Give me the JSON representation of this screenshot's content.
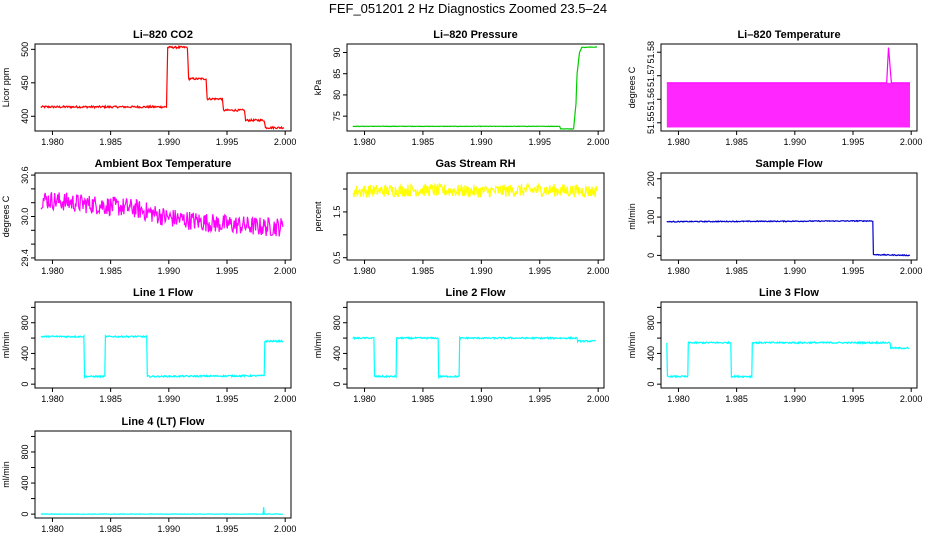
{
  "page": {
    "title": "FEF_051201  2 Hz Diagnostics Zoomed 23.5–24"
  },
  "chart_data": [
    {
      "type": "line",
      "title": "Li–820 CO2",
      "ylabel": "Licor ppm",
      "color": "#ff0000",
      "xlim": [
        1.9785,
        2.0005
      ],
      "ylim": [
        378,
        508
      ],
      "x_ticks": [
        1.98,
        1.985,
        1.99,
        1.995,
        2.0
      ],
      "x_tick_labels": [
        "1.980",
        "1.985",
        "1.990",
        "1.995",
        "2.000"
      ],
      "y_ticks": [
        400,
        450,
        500
      ],
      "y_tick_labels": [
        "400",
        "450",
        "500"
      ],
      "noise": 1.5,
      "series": [
        {
          "x": [
            1.979,
            1.9898,
            1.9899,
            1.9916,
            1.9917,
            1.9932,
            1.9933,
            1.9946,
            1.9947,
            1.9965,
            1.9966,
            1.9982,
            1.9983,
            1.9999
          ],
          "y": [
            414,
            414,
            503,
            503,
            456,
            456,
            426,
            426,
            409,
            409,
            394,
            394,
            383,
            383
          ]
        }
      ]
    },
    {
      "type": "line",
      "title": "Li–820 Pressure",
      "ylabel": "kPa",
      "color": "#00cc00",
      "xlim": [
        1.9785,
        2.0005
      ],
      "ylim": [
        71.5,
        92
      ],
      "x_ticks": [
        1.98,
        1.985,
        1.99,
        1.995,
        2.0
      ],
      "x_tick_labels": [
        "1.980",
        "1.985",
        "1.990",
        "1.995",
        "2.000"
      ],
      "y_ticks": [
        75,
        80,
        85,
        90
      ],
      "y_tick_labels": [
        "75",
        "80",
        "85",
        "90"
      ],
      "noise": 0.05,
      "series": [
        {
          "x": [
            1.979,
            1.9967,
            1.9968,
            1.9979,
            1.9981,
            1.9982,
            1.9984,
            1.9986,
            1.9999
          ],
          "y": [
            72.6,
            72.6,
            72.0,
            72.0,
            78.0,
            85.0,
            90.0,
            91.2,
            91.3
          ]
        }
      ]
    },
    {
      "type": "line",
      "title": "Li–820 Temperature",
      "ylabel": "degrees C",
      "color": "#ff00ff",
      "xlim": [
        1.9785,
        2.0005
      ],
      "ylim": [
        51.5465,
        51.5835
      ],
      "x_ticks": [
        1.98,
        1.985,
        1.99,
        1.995,
        2.0
      ],
      "x_tick_labels": [
        "1.980",
        "1.985",
        "1.990",
        "1.995",
        "2.000"
      ],
      "y_ticks": [
        51.55,
        51.56,
        51.57,
        51.58
      ],
      "y_tick_labels": [
        "51.55",
        "51.56",
        "51.57",
        "51.58"
      ],
      "noise": 0,
      "band": [
        51.548,
        51.567
      ],
      "series": [
        {
          "x": [
            1.979,
            1.983,
            1.986,
            1.99,
            1.994,
            1.9979,
            1.99805,
            1.9983,
            1.9999
          ],
          "y": [
            51.567,
            51.567,
            51.567,
            51.567,
            51.567,
            51.567,
            51.582,
            51.567,
            51.567
          ]
        }
      ]
    },
    {
      "type": "line",
      "title": "Ambient Box Temperature",
      "ylabel": "degrees C",
      "color": "#ff00ff",
      "xlim": [
        1.9785,
        2.0005
      ],
      "ylim": [
        29.37,
        30.63
      ],
      "x_ticks": [
        1.98,
        1.985,
        1.99,
        1.995,
        2.0
      ],
      "x_tick_labels": [
        "1.980",
        "1.985",
        "1.990",
        "1.995",
        "2.000"
      ],
      "y_ticks": [
        29.4,
        29.6,
        29.8,
        30.0,
        30.2,
        30.4,
        30.6
      ],
      "y_tick_labels": [
        "29.4",
        "",
        "",
        "30.0",
        "",
        "",
        "30.6"
      ],
      "noise": 0.14,
      "series": [
        {
          "x": [
            1.979,
            1.983,
            1.987,
            1.99,
            1.994,
            1.998,
            1.9998
          ],
          "y": [
            30.25,
            30.18,
            30.12,
            29.98,
            29.9,
            29.85,
            29.85
          ]
        }
      ]
    },
    {
      "type": "line",
      "title": "Gas Stream RH",
      "ylabel": "percent",
      "color": "#ffff00",
      "xlim": [
        1.9785,
        2.0005
      ],
      "ylim": [
        0.45,
        2.35
      ],
      "x_ticks": [
        1.98,
        1.985,
        1.99,
        1.995,
        2.0
      ],
      "x_tick_labels": [
        "1.980",
        "1.985",
        "1.990",
        "1.995",
        "2.000"
      ],
      "y_ticks": [
        0.5,
        1.0,
        1.5,
        2.0
      ],
      "y_tick_labels": [
        "0.5",
        "",
        "1.5",
        ""
      ],
      "noise": 0.14,
      "series": [
        {
          "x": [
            1.979,
            1.985,
            1.99,
            1.995,
            1.9999
          ],
          "y": [
            1.95,
            1.98,
            1.95,
            1.98,
            1.95
          ]
        }
      ]
    },
    {
      "type": "line",
      "title": "Sample Flow",
      "ylabel": "ml/min",
      "color": "#0000cc",
      "xlim": [
        1.9785,
        2.0005
      ],
      "ylim": [
        -12,
        215
      ],
      "x_ticks": [
        1.98,
        1.985,
        1.99,
        1.995,
        2.0
      ],
      "x_tick_labels": [
        "1.980",
        "1.985",
        "1.990",
        "1.995",
        "2.000"
      ],
      "y_ticks": [
        0,
        50,
        100,
        150,
        200
      ],
      "y_tick_labels": [
        "0",
        "",
        "100",
        "",
        "200"
      ],
      "noise": 1.2,
      "series": [
        {
          "x": [
            1.979,
            1.9967,
            1.99675,
            1.9999
          ],
          "y": [
            88,
            90,
            2,
            0
          ]
        }
      ]
    },
    {
      "type": "line",
      "title": "Line 1 Flow",
      "ylabel": "ml/min",
      "color": "#00ffff",
      "xlim": [
        1.9785,
        2.0005
      ],
      "ylim": [
        -50,
        1070
      ],
      "x_ticks": [
        1.98,
        1.985,
        1.99,
        1.995,
        2.0
      ],
      "x_tick_labels": [
        "1.980",
        "1.985",
        "1.990",
        "1.995",
        "2.000"
      ],
      "y_ticks": [
        0,
        200,
        400,
        600,
        800,
        1000
      ],
      "y_tick_labels": [
        "0",
        "",
        "400",
        "",
        "800",
        ""
      ],
      "noise": 10,
      "series": [
        {
          "x": [
            1.979,
            1.97905,
            1.9827,
            1.98275,
            1.9845,
            1.98455,
            1.9881,
            1.98815,
            1.9982,
            1.99825,
            1.9998
          ],
          "y": [
            620,
            620,
            620,
            100,
            100,
            620,
            620,
            100,
            110,
            560,
            560
          ]
        }
      ]
    },
    {
      "type": "line",
      "title": "Line 2 Flow",
      "ylabel": "ml/min",
      "color": "#00ffff",
      "xlim": [
        1.9785,
        2.0005
      ],
      "ylim": [
        -50,
        1070
      ],
      "x_ticks": [
        1.98,
        1.985,
        1.99,
        1.995,
        2.0
      ],
      "x_tick_labels": [
        "1.980",
        "1.985",
        "1.990",
        "1.995",
        "2.000"
      ],
      "y_ticks": [
        0,
        200,
        400,
        600,
        800,
        1000
      ],
      "y_tick_labels": [
        "0",
        "",
        "400",
        "",
        "800",
        ""
      ],
      "noise": 10,
      "series": [
        {
          "x": [
            1.979,
            1.9808,
            1.98085,
            1.9827,
            1.98275,
            1.9863,
            1.98635,
            1.9881,
            1.98815,
            1.9982,
            1.99825,
            1.9998
          ],
          "y": [
            600,
            600,
            100,
            100,
            600,
            600,
            100,
            100,
            600,
            600,
            560,
            560
          ]
        }
      ]
    },
    {
      "type": "line",
      "title": "Line 3 Flow",
      "ylabel": "ml/min",
      "color": "#00ffff",
      "xlim": [
        1.9785,
        2.0005
      ],
      "ylim": [
        -50,
        1070
      ],
      "x_ticks": [
        1.98,
        1.985,
        1.99,
        1.995,
        2.0
      ],
      "x_tick_labels": [
        "1.980",
        "1.985",
        "1.990",
        "1.995",
        "2.000"
      ],
      "y_ticks": [
        0,
        200,
        400,
        600,
        800,
        1000
      ],
      "y_tick_labels": [
        "0",
        "",
        "400",
        "",
        "800",
        ""
      ],
      "noise": 10,
      "series": [
        {
          "x": [
            1.979,
            1.97905,
            1.9808,
            1.98085,
            1.9845,
            1.98455,
            1.9863,
            1.98635,
            1.9982,
            1.99825,
            1.9998
          ],
          "y": [
            540,
            100,
            100,
            540,
            540,
            100,
            100,
            540,
            540,
            470,
            470
          ]
        }
      ]
    },
    {
      "type": "line",
      "title": "Line 4 (LT) Flow",
      "ylabel": "ml/min",
      "color": "#00ffff",
      "xlim": [
        1.9785,
        2.0005
      ],
      "ylim": [
        -50,
        1070
      ],
      "x_ticks": [
        1.98,
        1.985,
        1.99,
        1.995,
        2.0
      ],
      "x_tick_labels": [
        "1.980",
        "1.985",
        "1.990",
        "1.995",
        "2.000"
      ],
      "y_ticks": [
        0,
        200,
        400,
        600,
        800,
        1000
      ],
      "y_tick_labels": [
        "0",
        "",
        "400",
        "",
        "800",
        ""
      ],
      "noise": 3,
      "series": [
        {
          "x": [
            1.979,
            1.9981,
            1.99815,
            1.9982,
            1.99825,
            1.9998
          ],
          "y": [
            0,
            0,
            90,
            0,
            0,
            0
          ]
        }
      ]
    }
  ]
}
